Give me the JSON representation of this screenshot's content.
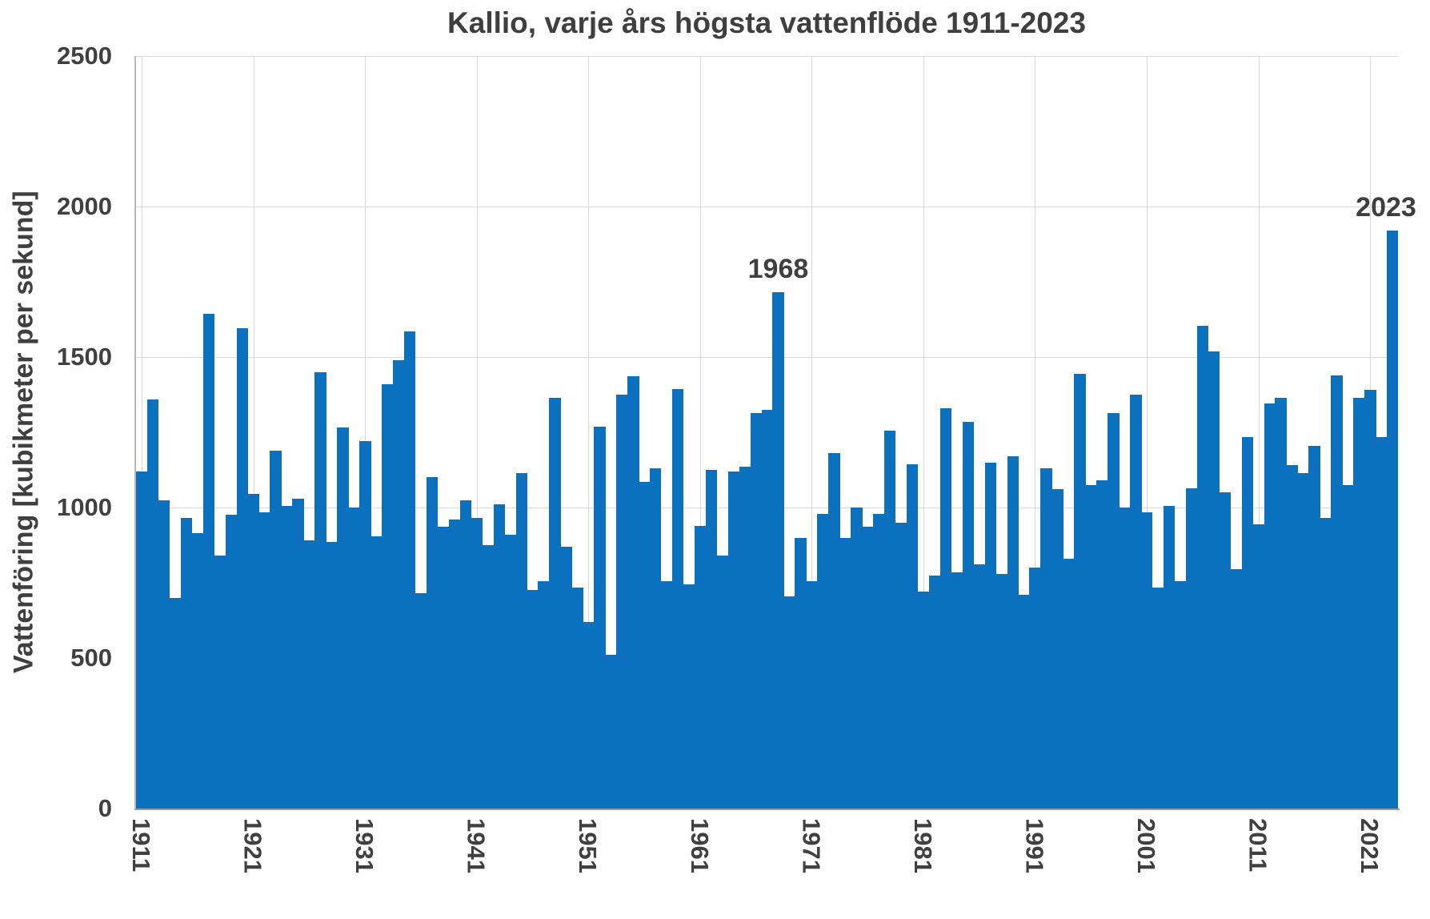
{
  "title": "Kallio, varje års högsta vattenflöde 1911-2023",
  "y_axis": {
    "label": "Vattenföring [kubikmeter per sekund]",
    "tick_values": [
      0,
      500,
      1000,
      1500,
      2000,
      2500
    ]
  },
  "x_axis": {
    "tick_years": [
      1911,
      1921,
      1931,
      1941,
      1951,
      1961,
      1971,
      1981,
      1991,
      2001,
      2011,
      2021
    ]
  },
  "annotations": [
    {
      "text": "1968",
      "year": 1968,
      "value": 1715
    },
    {
      "text": "2023",
      "year": 2023,
      "value": 1920
    }
  ],
  "colors": {
    "bar": "#0b70bd",
    "gridline": "#d9d9d9",
    "text": "#404040"
  },
  "chart_data": {
    "type": "bar",
    "title": "Kallio, varje års högsta vattenflöde 1911-2023",
    "xlabel": "",
    "ylabel": "Vattenföring [kubikmeter per sekund]",
    "ylim": [
      0,
      2500
    ],
    "grid": true,
    "legend": false,
    "categories": [
      1911,
      1912,
      1913,
      1914,
      1915,
      1916,
      1917,
      1918,
      1919,
      1920,
      1921,
      1922,
      1923,
      1924,
      1925,
      1926,
      1927,
      1928,
      1929,
      1930,
      1931,
      1932,
      1933,
      1934,
      1935,
      1936,
      1937,
      1938,
      1939,
      1940,
      1941,
      1942,
      1943,
      1944,
      1945,
      1946,
      1947,
      1948,
      1949,
      1950,
      1951,
      1952,
      1953,
      1954,
      1955,
      1956,
      1957,
      1958,
      1959,
      1960,
      1961,
      1962,
      1963,
      1964,
      1965,
      1966,
      1967,
      1968,
      1969,
      1970,
      1971,
      1972,
      1973,
      1974,
      1975,
      1976,
      1977,
      1978,
      1979,
      1980,
      1981,
      1982,
      1983,
      1984,
      1985,
      1986,
      1987,
      1988,
      1989,
      1990,
      1991,
      1992,
      1993,
      1994,
      1995,
      1996,
      1997,
      1998,
      1999,
      2000,
      2001,
      2002,
      2003,
      2004,
      2005,
      2006,
      2007,
      2008,
      2009,
      2010,
      2011,
      2012,
      2013,
      2014,
      2015,
      2016,
      2017,
      2018,
      2019,
      2020,
      2021,
      2022,
      2023
    ],
    "values": [
      1120,
      1360,
      1025,
      700,
      965,
      915,
      1645,
      840,
      975,
      1595,
      1045,
      985,
      1190,
      1005,
      1030,
      890,
      1450,
      885,
      1265,
      1000,
      1220,
      905,
      1410,
      1490,
      1585,
      715,
      1100,
      935,
      960,
      1025,
      965,
      875,
      1010,
      910,
      1115,
      725,
      755,
      1365,
      870,
      735,
      620,
      1270,
      510,
      1375,
      1435,
      1085,
      1130,
      755,
      1395,
      745,
      940,
      1125,
      840,
      1120,
      1135,
      1315,
      1325,
      1715,
      705,
      900,
      755,
      980,
      1180,
      900,
      1000,
      935,
      980,
      1255,
      950,
      1145,
      720,
      775,
      1330,
      785,
      1285,
      810,
      1150,
      780,
      1170,
      710,
      800,
      1130,
      1060,
      830,
      1445,
      1075,
      1090,
      1315,
      1000,
      1375,
      985,
      735,
      1005,
      755,
      1065,
      1605,
      1520,
      1050,
      795,
      1235,
      945,
      1345,
      1365,
      1140,
      1115,
      1205,
      965,
      1440,
      1075,
      1365,
      1390,
      1235,
      1920
    ]
  }
}
